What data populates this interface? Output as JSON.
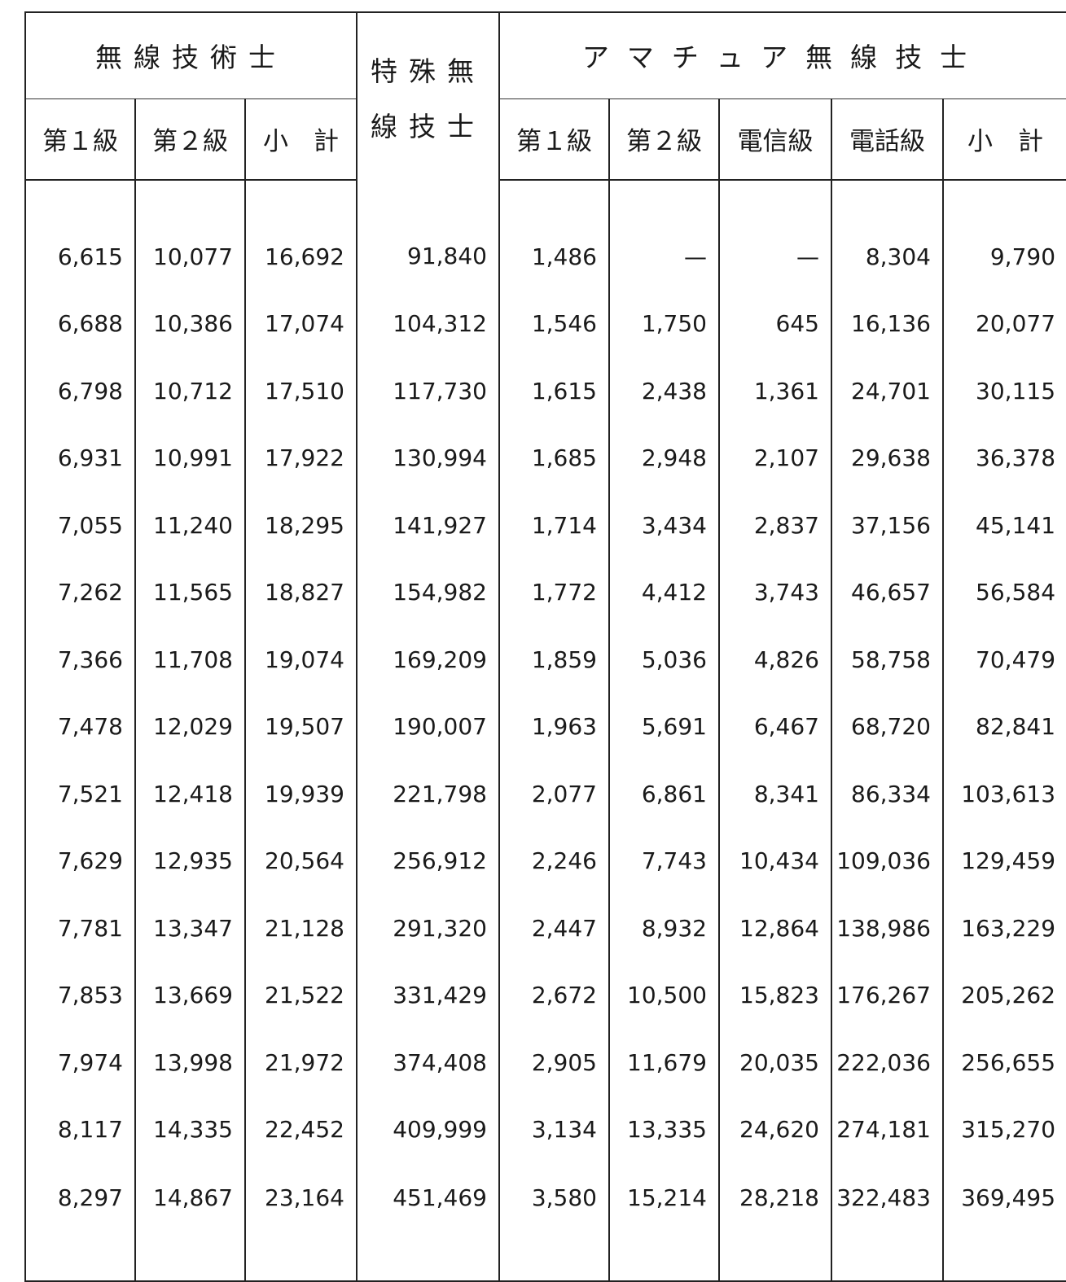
{
  "header": {
    "group_radio_engineer": "無線技術士",
    "group_special": "特殊無線技士",
    "group_special_line1": "特殊無",
    "group_special_line2": "線技士",
    "group_amateur": "アマチュア無線技士",
    "columns": [
      "第１級",
      "第２級",
      "小　計",
      "第１級",
      "第２級",
      "電信級",
      "電話級",
      "小　計"
    ]
  },
  "rows": [
    [
      "6,615",
      "10,077",
      "16,692",
      "91,840",
      "1,486",
      "—",
      "—",
      "8,304",
      "9,790"
    ],
    [
      "6,688",
      "10,386",
      "17,074",
      "104,312",
      "1,546",
      "1,750",
      "645",
      "16,136",
      "20,077"
    ],
    [
      "6,798",
      "10,712",
      "17,510",
      "117,730",
      "1,615",
      "2,438",
      "1,361",
      "24,701",
      "30,115"
    ],
    [
      "6,931",
      "10,991",
      "17,922",
      "130,994",
      "1,685",
      "2,948",
      "2,107",
      "29,638",
      "36,378"
    ],
    [
      "7,055",
      "11,240",
      "18,295",
      "141,927",
      "1,714",
      "3,434",
      "2,837",
      "37,156",
      "45,141"
    ],
    [
      "7,262",
      "11,565",
      "18,827",
      "154,982",
      "1,772",
      "4,412",
      "3,743",
      "46,657",
      "56,584"
    ],
    [
      "7,366",
      "11,708",
      "19,074",
      "169,209",
      "1,859",
      "5,036",
      "4,826",
      "58,758",
      "70,479"
    ],
    [
      "7,478",
      "12,029",
      "19,507",
      "190,007",
      "1,963",
      "5,691",
      "6,467",
      "68,720",
      "82,841"
    ],
    [
      "7,521",
      "12,418",
      "19,939",
      "221,798",
      "2,077",
      "6,861",
      "8,341",
      "86,334",
      "103,613"
    ],
    [
      "7,629",
      "12,935",
      "20,564",
      "256,912",
      "2,246",
      "7,743",
      "10,434",
      "109,036",
      "129,459"
    ],
    [
      "7,781",
      "13,347",
      "21,128",
      "291,320",
      "2,447",
      "8,932",
      "12,864",
      "138,986",
      "163,229"
    ],
    [
      "7,853",
      "13,669",
      "21,522",
      "331,429",
      "2,672",
      "10,500",
      "15,823",
      "176,267",
      "205,262"
    ],
    [
      "7,974",
      "13,998",
      "21,972",
      "374,408",
      "2,905",
      "11,679",
      "20,035",
      "222,036",
      "256,655"
    ],
    [
      "8,117",
      "14,335",
      "22,452",
      "409,999",
      "3,134",
      "13,335",
      "24,620",
      "274,181",
      "315,270"
    ],
    [
      "8,297",
      "14,867",
      "23,164",
      "451,469",
      "3,580",
      "15,214",
      "28,218",
      "322,483",
      "369,495"
    ]
  ]
}
